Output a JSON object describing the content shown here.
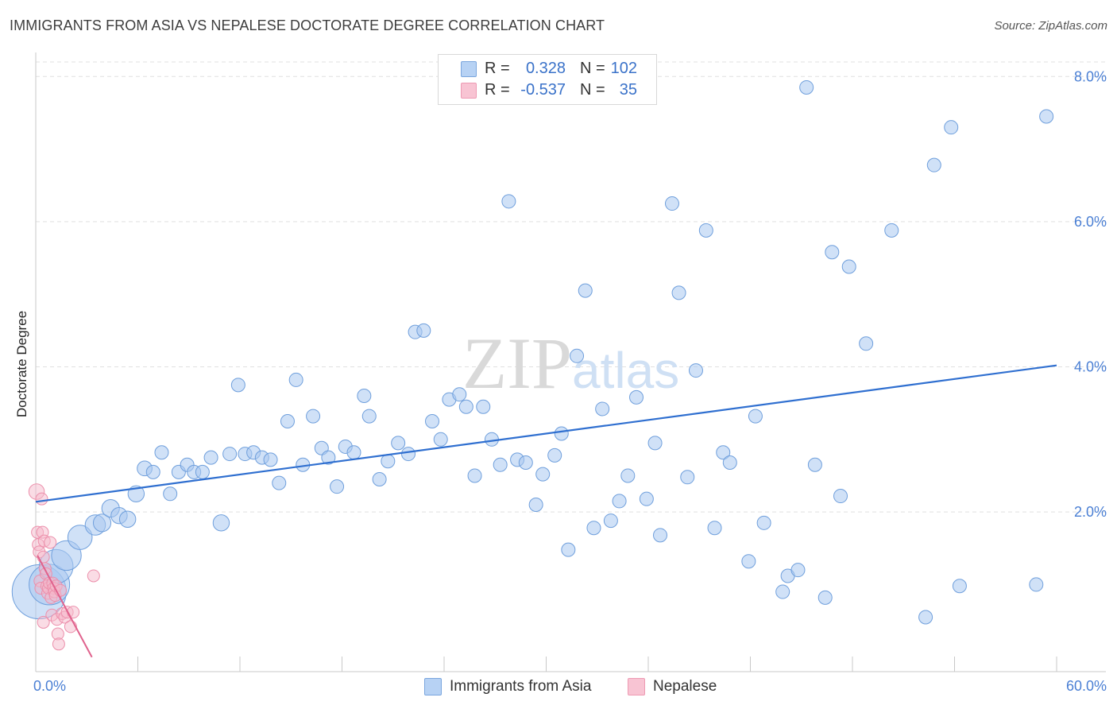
{
  "title": "IMMIGRANTS FROM ASIA VS NEPALESE DOCTORATE DEGREE CORRELATION CHART",
  "source": "Source: ZipAtlas.com",
  "watermark": {
    "zip": "ZIP",
    "atlas": "atlas"
  },
  "legend": {
    "asia": {
      "r_label": "R =",
      "r_value": "0.328",
      "n_label": "N =",
      "n_value": "102"
    },
    "nepal": {
      "r_label": "R =",
      "r_value": "-0.537",
      "n_label": "N =",
      "n_value": "35"
    }
  },
  "bottom_legend": {
    "asia": "Immigrants from Asia",
    "nepal": "Nepalese"
  },
  "colors": {
    "asia_fill": "#a9c8f0",
    "asia_stroke": "#6f9fdc",
    "asia_line": "#2f6fd0",
    "nepal_fill": "#f6b9cb",
    "nepal_stroke": "#ec8fab",
    "nepal_line": "#e0628d",
    "grid": "#e0e0e0",
    "tick_text": "#4a7fd4"
  },
  "chart_data": {
    "type": "scatter",
    "title": "IMMIGRANTS FROM ASIA VS NEPALESE DOCTORATE DEGREE CORRELATION CHART",
    "ylabel": "Doctorate Degree",
    "xlabel": "",
    "xlim": [
      0,
      60
    ],
    "ylim": [
      -0.2,
      8.2
    ],
    "x_tick_labels": {
      "min": "0.0%",
      "max": "60.0%"
    },
    "y_ticks": [
      {
        "value": 2.0,
        "label": "2.0%"
      },
      {
        "value": 4.0,
        "label": "4.0%"
      },
      {
        "value": 6.0,
        "label": "6.0%"
      },
      {
        "value": 8.0,
        "label": "8.0%"
      }
    ],
    "series": [
      {
        "name": "Immigrants from Asia",
        "R": 0.328,
        "N": 102,
        "trend": {
          "x": [
            0,
            60
          ],
          "y": [
            2.14,
            4.02
          ]
        },
        "points": [
          {
            "x": 0.2,
            "y": 0.9,
            "s": 4
          },
          {
            "x": 0.8,
            "y": 1.0,
            "s": 3
          },
          {
            "x": 1.2,
            "y": 1.25,
            "s": 2.5
          },
          {
            "x": 1.8,
            "y": 1.4,
            "s": 2.2
          },
          {
            "x": 2.6,
            "y": 1.65,
            "s": 1.8
          },
          {
            "x": 3.5,
            "y": 1.82,
            "s": 1.5
          },
          {
            "x": 3.9,
            "y": 1.85,
            "s": 1.3
          },
          {
            "x": 4.4,
            "y": 2.05,
            "s": 1.3
          },
          {
            "x": 4.9,
            "y": 1.95,
            "s": 1.2
          },
          {
            "x": 5.4,
            "y": 1.9,
            "s": 1.2
          },
          {
            "x": 5.9,
            "y": 2.25,
            "s": 1.2
          },
          {
            "x": 6.4,
            "y": 2.6,
            "s": 1.1
          },
          {
            "x": 6.9,
            "y": 2.55,
            "s": 1
          },
          {
            "x": 7.4,
            "y": 2.82,
            "s": 1
          },
          {
            "x": 7.9,
            "y": 2.25,
            "s": 1
          },
          {
            "x": 8.4,
            "y": 2.55,
            "s": 1
          },
          {
            "x": 8.9,
            "y": 2.65,
            "s": 1
          },
          {
            "x": 9.3,
            "y": 2.55,
            "s": 1
          },
          {
            "x": 9.8,
            "y": 2.55,
            "s": 1
          },
          {
            "x": 10.3,
            "y": 2.75,
            "s": 1
          },
          {
            "x": 10.9,
            "y": 1.85,
            "s": 1.2
          },
          {
            "x": 11.4,
            "y": 2.8,
            "s": 1
          },
          {
            "x": 11.9,
            "y": 3.75,
            "s": 1
          },
          {
            "x": 12.3,
            "y": 2.8,
            "s": 1
          },
          {
            "x": 12.8,
            "y": 2.82,
            "s": 1
          },
          {
            "x": 13.3,
            "y": 2.75,
            "s": 1
          },
          {
            "x": 13.8,
            "y": 2.72,
            "s": 1
          },
          {
            "x": 14.3,
            "y": 2.4,
            "s": 1
          },
          {
            "x": 14.8,
            "y": 3.25,
            "s": 1
          },
          {
            "x": 15.3,
            "y": 3.82,
            "s": 1
          },
          {
            "x": 15.7,
            "y": 2.65,
            "s": 1
          },
          {
            "x": 16.3,
            "y": 3.32,
            "s": 1
          },
          {
            "x": 16.8,
            "y": 2.88,
            "s": 1
          },
          {
            "x": 17.2,
            "y": 2.75,
            "s": 1
          },
          {
            "x": 17.7,
            "y": 2.35,
            "s": 1
          },
          {
            "x": 18.2,
            "y": 2.9,
            "s": 1
          },
          {
            "x": 18.7,
            "y": 2.82,
            "s": 1
          },
          {
            "x": 19.3,
            "y": 3.6,
            "s": 1
          },
          {
            "x": 19.6,
            "y": 3.32,
            "s": 1
          },
          {
            "x": 20.2,
            "y": 2.45,
            "s": 1
          },
          {
            "x": 20.7,
            "y": 2.7,
            "s": 1
          },
          {
            "x": 21.3,
            "y": 2.95,
            "s": 1
          },
          {
            "x": 21.9,
            "y": 2.8,
            "s": 1
          },
          {
            "x": 22.3,
            "y": 4.48,
            "s": 1
          },
          {
            "x": 22.8,
            "y": 4.5,
            "s": 1
          },
          {
            "x": 23.3,
            "y": 3.25,
            "s": 1
          },
          {
            "x": 23.8,
            "y": 3.0,
            "s": 1
          },
          {
            "x": 24.3,
            "y": 3.55,
            "s": 1
          },
          {
            "x": 24.9,
            "y": 3.62,
            "s": 1
          },
          {
            "x": 25.3,
            "y": 3.45,
            "s": 1
          },
          {
            "x": 25.8,
            "y": 2.5,
            "s": 1
          },
          {
            "x": 26.3,
            "y": 3.45,
            "s": 1
          },
          {
            "x": 26.8,
            "y": 3.0,
            "s": 1
          },
          {
            "x": 27.3,
            "y": 2.65,
            "s": 1
          },
          {
            "x": 27.8,
            "y": 6.28,
            "s": 1
          },
          {
            "x": 28.3,
            "y": 2.72,
            "s": 1
          },
          {
            "x": 28.8,
            "y": 2.68,
            "s": 1
          },
          {
            "x": 29.4,
            "y": 2.1,
            "s": 1
          },
          {
            "x": 29.8,
            "y": 2.52,
            "s": 1
          },
          {
            "x": 30.5,
            "y": 2.78,
            "s": 1
          },
          {
            "x": 30.9,
            "y": 3.08,
            "s": 1
          },
          {
            "x": 31.3,
            "y": 1.48,
            "s": 1
          },
          {
            "x": 31.8,
            "y": 4.15,
            "s": 1
          },
          {
            "x": 32.3,
            "y": 5.05,
            "s": 1
          },
          {
            "x": 32.8,
            "y": 1.78,
            "s": 1
          },
          {
            "x": 33.3,
            "y": 3.42,
            "s": 1
          },
          {
            "x": 33.8,
            "y": 1.88,
            "s": 1
          },
          {
            "x": 34.3,
            "y": 2.15,
            "s": 1
          },
          {
            "x": 34.8,
            "y": 2.5,
            "s": 1
          },
          {
            "x": 35.3,
            "y": 3.58,
            "s": 1
          },
          {
            "x": 35.9,
            "y": 2.18,
            "s": 1
          },
          {
            "x": 36.4,
            "y": 2.95,
            "s": 1
          },
          {
            "x": 36.7,
            "y": 1.68,
            "s": 1
          },
          {
            "x": 37.4,
            "y": 6.25,
            "s": 1
          },
          {
            "x": 37.8,
            "y": 5.02,
            "s": 1
          },
          {
            "x": 38.3,
            "y": 2.48,
            "s": 1
          },
          {
            "x": 38.8,
            "y": 3.95,
            "s": 1
          },
          {
            "x": 39.4,
            "y": 5.88,
            "s": 1
          },
          {
            "x": 39.9,
            "y": 1.78,
            "s": 1
          },
          {
            "x": 40.4,
            "y": 2.82,
            "s": 1
          },
          {
            "x": 40.8,
            "y": 2.68,
            "s": 1
          },
          {
            "x": 41.9,
            "y": 1.32,
            "s": 1
          },
          {
            "x": 42.3,
            "y": 3.32,
            "s": 1
          },
          {
            "x": 42.8,
            "y": 1.85,
            "s": 1
          },
          {
            "x": 43.9,
            "y": 0.9,
            "s": 1
          },
          {
            "x": 44.2,
            "y": 1.12,
            "s": 1
          },
          {
            "x": 44.8,
            "y": 1.2,
            "s": 1
          },
          {
            "x": 45.3,
            "y": 7.85,
            "s": 1
          },
          {
            "x": 45.8,
            "y": 2.65,
            "s": 1
          },
          {
            "x": 46.4,
            "y": 0.82,
            "s": 1
          },
          {
            "x": 46.8,
            "y": 5.58,
            "s": 1
          },
          {
            "x": 47.3,
            "y": 2.22,
            "s": 1
          },
          {
            "x": 47.8,
            "y": 5.38,
            "s": 1
          },
          {
            "x": 48.8,
            "y": 4.32,
            "s": 1
          },
          {
            "x": 50.3,
            "y": 5.88,
            "s": 1
          },
          {
            "x": 52.3,
            "y": 0.55,
            "s": 1
          },
          {
            "x": 52.8,
            "y": 6.78,
            "s": 1
          },
          {
            "x": 53.8,
            "y": 7.3,
            "s": 1
          },
          {
            "x": 54.3,
            "y": 0.98,
            "s": 1
          },
          {
            "x": 58.8,
            "y": 1.0,
            "s": 1
          },
          {
            "x": 59.4,
            "y": 7.45,
            "s": 1
          }
        ]
      },
      {
        "name": "Nepalese",
        "R": -0.537,
        "N": 35,
        "trend": {
          "x": [
            0.1,
            3.3
          ],
          "y": [
            1.4,
            0.0
          ]
        },
        "points": [
          {
            "x": 0.05,
            "y": 2.28,
            "s": 1.3
          },
          {
            "x": 0.1,
            "y": 1.72,
            "s": 1
          },
          {
            "x": 0.15,
            "y": 1.55,
            "s": 1
          },
          {
            "x": 0.2,
            "y": 1.45,
            "s": 1
          },
          {
            "x": 0.25,
            "y": 1.05,
            "s": 1
          },
          {
            "x": 0.3,
            "y": 0.95,
            "s": 1
          },
          {
            "x": 0.35,
            "y": 2.18,
            "s": 1
          },
          {
            "x": 0.4,
            "y": 1.72,
            "s": 1
          },
          {
            "x": 0.45,
            "y": 1.38,
            "s": 1
          },
          {
            "x": 0.5,
            "y": 1.6,
            "s": 1
          },
          {
            "x": 0.55,
            "y": 1.22,
            "s": 1
          },
          {
            "x": 0.6,
            "y": 1.15,
            "s": 1
          },
          {
            "x": 0.65,
            "y": 0.98,
            "s": 1
          },
          {
            "x": 0.7,
            "y": 0.88,
            "s": 1
          },
          {
            "x": 0.75,
            "y": 0.95,
            "s": 1
          },
          {
            "x": 0.8,
            "y": 1.02,
            "s": 1
          },
          {
            "x": 0.85,
            "y": 1.58,
            "s": 1
          },
          {
            "x": 0.9,
            "y": 0.82,
            "s": 1
          },
          {
            "x": 0.95,
            "y": 0.58,
            "s": 1
          },
          {
            "x": 1.0,
            "y": 1.02,
            "s": 1
          },
          {
            "x": 1.05,
            "y": 0.95,
            "s": 1
          },
          {
            "x": 1.1,
            "y": 0.9,
            "s": 1
          },
          {
            "x": 1.15,
            "y": 0.85,
            "s": 1
          },
          {
            "x": 1.2,
            "y": 0.98,
            "s": 1
          },
          {
            "x": 1.25,
            "y": 0.52,
            "s": 1
          },
          {
            "x": 1.3,
            "y": 0.32,
            "s": 1
          },
          {
            "x": 1.35,
            "y": 0.18,
            "s": 1
          },
          {
            "x": 1.45,
            "y": 0.92,
            "s": 1
          },
          {
            "x": 1.55,
            "y": 0.6,
            "s": 1
          },
          {
            "x": 1.7,
            "y": 0.55,
            "s": 1
          },
          {
            "x": 1.85,
            "y": 0.62,
            "s": 1
          },
          {
            "x": 0.45,
            "y": 0.48,
            "s": 1
          },
          {
            "x": 2.05,
            "y": 0.42,
            "s": 1
          },
          {
            "x": 2.2,
            "y": 0.62,
            "s": 1
          },
          {
            "x": 3.4,
            "y": 1.12,
            "s": 1
          }
        ]
      }
    ]
  }
}
